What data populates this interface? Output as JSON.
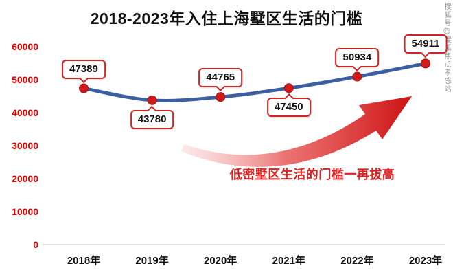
{
  "watermark": "搜狐号@搜狐焦点孝感站",
  "chart_data": {
    "type": "line",
    "title": "2018-2023年入住上海墅区生活的门槛",
    "categories": [
      "2018年",
      "2019年",
      "2020年",
      "2021年",
      "2022年",
      "2023年"
    ],
    "values": [
      47389,
      43780,
      44765,
      47450,
      50934,
      54911
    ],
    "series": [
      {
        "name": "入住上海墅区生活的门槛",
        "values": [
          47389,
          43780,
          44765,
          47450,
          50934,
          54911
        ]
      }
    ],
    "ylim": [
      0,
      60000
    ],
    "y_ticks": [
      0,
      10000,
      20000,
      30000,
      40000,
      50000,
      60000
    ],
    "annotation": "低密墅区生活的门槛一再拔高",
    "label_positions": [
      "above",
      "below",
      "above",
      "below",
      "above",
      "above"
    ],
    "grid": false,
    "legend": false,
    "line_color": "#3b5fa0",
    "point_color": "#d11a1a",
    "tick_color": "#e60000",
    "x_label_color": "#111111",
    "annotation_color": "#e02020",
    "arrow_color": "#cc1212"
  }
}
